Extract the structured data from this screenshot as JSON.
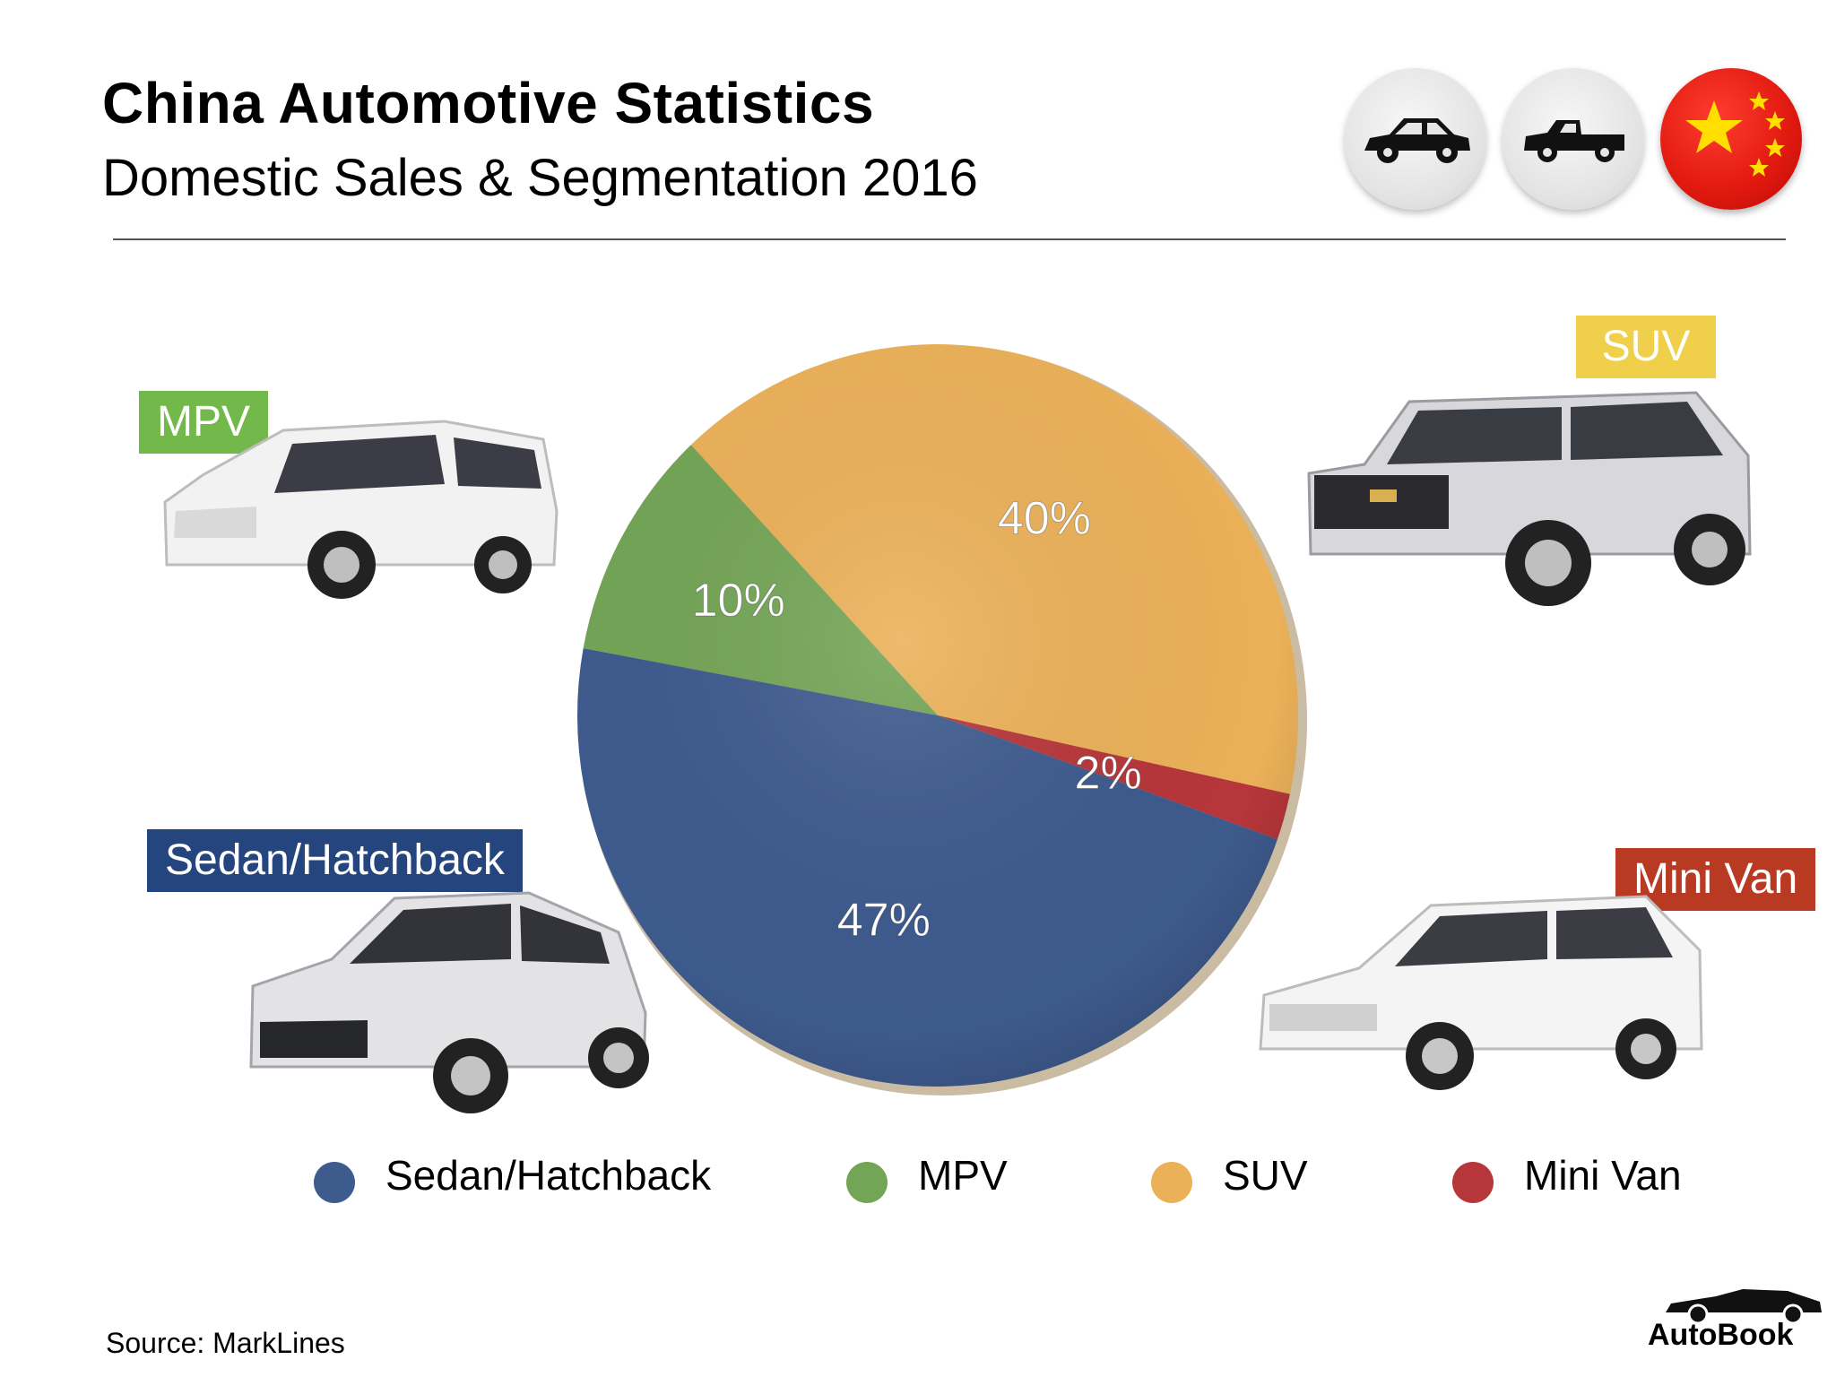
{
  "header": {
    "title": "China Automotive Statistics",
    "subtitle": "Domestic Sales & Segmentation 2016"
  },
  "badges": [
    "car-sedan-icon",
    "pickup-truck-icon",
    "china-flag-icon"
  ],
  "chart_data": {
    "type": "pie",
    "title": "Domestic Sales & Segmentation 2016",
    "slices": [
      {
        "label": "Sedan/Hatchback",
        "value": 47,
        "display": "47%",
        "color": "#3e5b8e"
      },
      {
        "label": "MPV",
        "value": 10,
        "display": "10%",
        "color": "#73a556"
      },
      {
        "label": "SUV",
        "value": 40,
        "display": "40%",
        "color": "#ebb159"
      },
      {
        "label": "Mini Van",
        "value": 2,
        "display": "2%",
        "color": "#b7363a"
      }
    ],
    "legend_position": "bottom"
  },
  "segment_labels": {
    "mpv": {
      "text": "MPV",
      "color": "#73b84a"
    },
    "suv": {
      "text": "SUV",
      "color": "#f0cf4a"
    },
    "sedan": {
      "text": "Sedan/Hatchback",
      "color": "#25457f"
    },
    "minivan": {
      "text": "Mini Van",
      "color": "#b93a23"
    }
  },
  "legend": [
    {
      "label": "Sedan/Hatchback",
      "color": "#3e5b8e"
    },
    {
      "label": "MPV",
      "color": "#73a556"
    },
    {
      "label": "SUV",
      "color": "#ebb159"
    },
    {
      "label": "Mini Van",
      "color": "#b7363a"
    }
  ],
  "footer": {
    "source": "Source:  MarkLines",
    "brand": "AutoBook"
  }
}
